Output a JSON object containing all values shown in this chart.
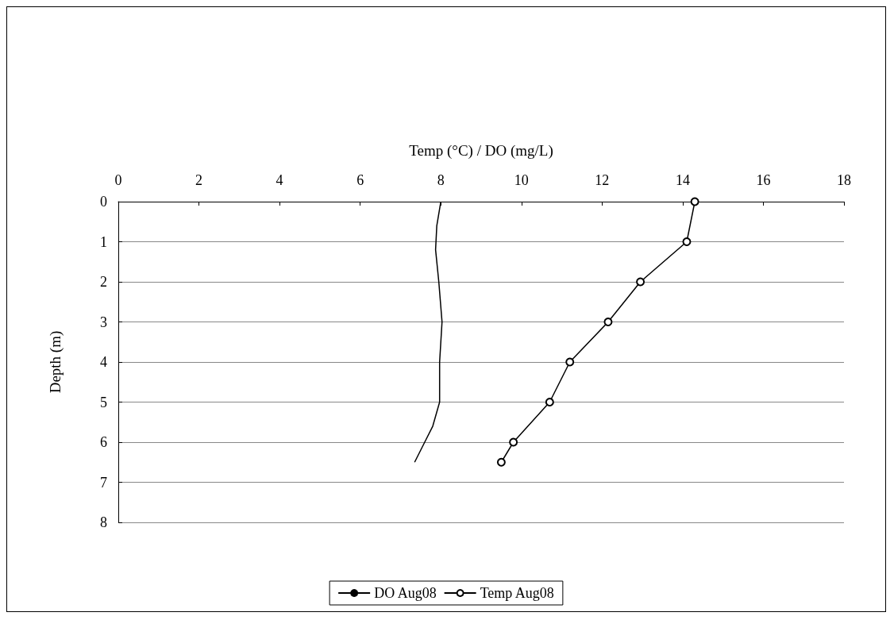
{
  "chart_data": {
    "type": "line",
    "xlabel": "Temp (°C) / DO (mg/L)",
    "ylabel": "Depth (m)",
    "xlim": [
      0,
      18
    ],
    "xticks": [
      0,
      2,
      4,
      6,
      8,
      10,
      12,
      14,
      16,
      18
    ],
    "ylim": [
      8,
      0
    ],
    "yticks": [
      0,
      1,
      2,
      3,
      4,
      5,
      6,
      7,
      8
    ],
    "grid": "y",
    "legend": "bottom",
    "line_style": "solid",
    "series": [
      {
        "name": "DO Aug08",
        "color": "#000000",
        "marker": "none",
        "x": [
          8.0,
          7.9,
          7.87,
          7.95,
          8.03,
          7.97,
          7.97,
          7.8,
          7.6,
          7.35
        ],
        "values": [
          0,
          0.6,
          1.2,
          2,
          3,
          4,
          5,
          5.6,
          6,
          6.5
        ]
      },
      {
        "name": "Temp Aug08",
        "color": "#000000",
        "marker": "circle",
        "x": [
          14.3,
          14.1,
          12.95,
          12.15,
          11.2,
          10.7,
          9.8,
          9.5
        ],
        "values": [
          0,
          1,
          2,
          3,
          4,
          5,
          6,
          6.5
        ]
      }
    ]
  }
}
